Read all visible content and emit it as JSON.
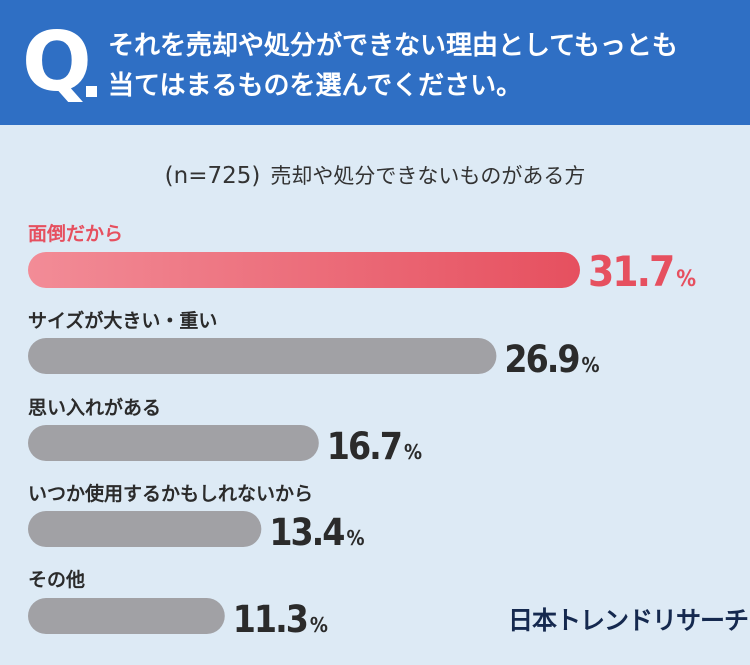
{
  "question": {
    "mark": "Q",
    "line1": "それを売却や処分ができない理由としてもっとも",
    "line2": "当てはまるものを選んでください。"
  },
  "subtitle": {
    "n": "(n=725)",
    "text": "売却や処分できないものがある方"
  },
  "brand": "日本トレンドリサーチ",
  "colors": {
    "header": "#2f6fc4",
    "background": "#ddeaf5",
    "highlight": "#e6505f",
    "highlight_light": "#f28c97",
    "bar": "#a1a1a5"
  },
  "chart_data": {
    "type": "bar",
    "orientation": "horizontal",
    "categories": [
      "面倒だから",
      "サイズが大きい・重い",
      "思い入れがある",
      "いつか使用するかもしれないから",
      "その他"
    ],
    "values": [
      31.7,
      26.9,
      16.7,
      13.4,
      11.3
    ],
    "value_labels": [
      "31.7",
      "26.9",
      "16.7",
      "13.4",
      "11.3"
    ],
    "unit": "%",
    "highlight_index": 0,
    "xlim": [
      0,
      31.7
    ]
  }
}
